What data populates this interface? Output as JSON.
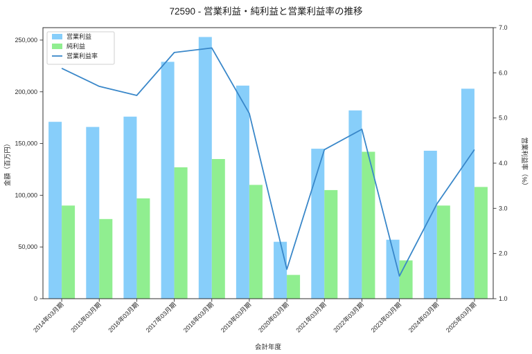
{
  "chart_data": {
    "type": "bar+line",
    "title": "72590 - 営業利益・純利益と営業利益率の推移",
    "xlabel": "会計年度",
    "grid": false,
    "legend_position": "upper left",
    "categories": [
      "2014年03月期",
      "2015年03月期",
      "2016年03月期",
      "2017年03月期",
      "2018年03月期",
      "2019年03月期",
      "2020年03月期",
      "2021年03月期",
      "2022年03月期",
      "2023年03月期",
      "2024年03月期",
      "2025年03月期"
    ],
    "bar_series": [
      {
        "name": "営業利益",
        "color": "#87CEFA",
        "axis": "left",
        "values": [
          171000,
          166000,
          176000,
          229000,
          253000,
          206000,
          55000,
          145000,
          182000,
          57000,
          143000,
          203000
        ]
      },
      {
        "name": "純利益",
        "color": "#90EE90",
        "axis": "left",
        "values": [
          90000,
          77000,
          97000,
          127000,
          135000,
          110000,
          23000,
          105000,
          142000,
          37000,
          90000,
          108000
        ]
      }
    ],
    "line_series": {
      "name": "営業利益率",
      "color": "#3987c9",
      "axis": "right",
      "values": [
        6.1,
        5.7,
        5.5,
        6.45,
        6.55,
        5.1,
        1.65,
        4.3,
        4.75,
        1.5,
        3.1,
        4.3
      ]
    },
    "axis_left": {
      "label": "金額（百万円）",
      "ticks": [
        0,
        50000,
        100000,
        150000,
        200000,
        250000
      ],
      "min": 0,
      "max": 262000
    },
    "axis_right": {
      "label": "営業利益率（%）",
      "ticks": [
        1.0,
        2.0,
        3.0,
        4.0,
        5.0,
        6.0,
        7.0
      ],
      "min": 1.0,
      "max": 7.0
    }
  }
}
